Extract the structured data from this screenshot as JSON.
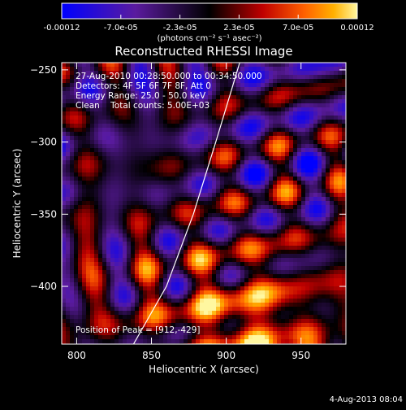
{
  "colorbar": {
    "tick_labels": [
      "-0.00012",
      "-7.0e-05",
      "-2.3e-05",
      "2.3e-05",
      "7.0e-05",
      "0.00012"
    ],
    "unit_label": "(photons cm⁻² s⁻¹ asec⁻²)",
    "range": [
      -0.00012,
      0.00012
    ]
  },
  "info_lines": [
    "27-Aug-2010 00:28:50.000 to 00:34:50.000",
    "Detectors: 4F 5F 6F 7F 8F, Att 0",
    "Energy Range: 25.0 - 50.0 keV",
    "Clean    Total counts: 5.00E+03"
  ],
  "peak_label": "Position of Peak = [912,-429]",
  "footer_date": "4-Aug-2013 08:04",
  "chart_data": {
    "type": "heatmap",
    "title": "Reconstructed RHESSI Image",
    "xlabel": "Heliocentric X (arcsec)",
    "ylabel": "Heliocentric Y (arcsec)",
    "xlim": [
      790,
      980
    ],
    "ylim": [
      -440,
      -245
    ],
    "xticks": [
      800,
      850,
      900,
      950
    ],
    "yticks": [
      -250,
      -300,
      -350,
      -400
    ],
    "peak": [
      912,
      -429
    ],
    "limb_curve": [
      [
        838,
        -440
      ],
      [
        860,
        -400
      ],
      [
        878,
        -350
      ],
      [
        893,
        -300
      ],
      [
        909,
        -245
      ]
    ],
    "colorscale": [
      "#0000ff",
      "#5a1b9e",
      "#000000",
      "#c00000",
      "#ff6000",
      "#ffb000",
      "#fff7a0"
    ]
  }
}
